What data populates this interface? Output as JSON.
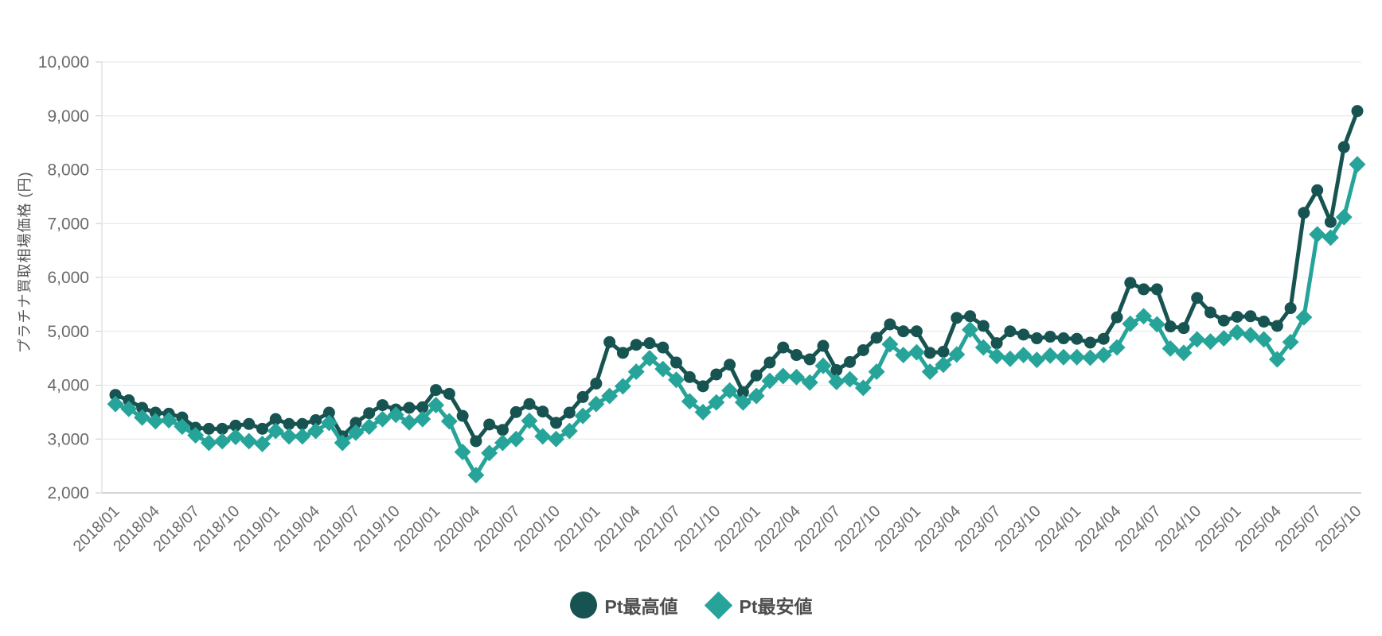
{
  "page": {
    "background": "#ffffff"
  },
  "chart_data": {
    "type": "line",
    "title": "",
    "xlabel": "",
    "ylabel": "プラチナ買取相場価格 (円)",
    "ylim": [
      2000,
      10000
    ],
    "y_tick_step": 1000,
    "y_tick_labels": [
      "2,000",
      "3,000",
      "4,000",
      "5,000",
      "6,000",
      "7,000",
      "8,000",
      "9,000",
      "10,000"
    ],
    "grid": true,
    "legend_position": "bottom",
    "x_tick_labels": [
      "2018/01",
      "2018/04",
      "2018/07",
      "2018/10",
      "2019/01",
      "2019/04",
      "2019/07",
      "2019/10",
      "2020/01",
      "2020/04",
      "2020/07",
      "2020/10",
      "2021/01",
      "2021/04",
      "2021/07",
      "2021/10",
      "2022/01",
      "2022/04",
      "2022/07",
      "2022/10",
      "2023/01",
      "2023/04",
      "2023/07",
      "2023/10",
      "2024/01",
      "2024/04",
      "2024/07",
      "2024/10",
      "2025/01",
      "2025/04",
      "2025/07",
      "2025/10"
    ],
    "x": [
      "2018/01",
      "2018/02",
      "2018/03",
      "2018/04",
      "2018/05",
      "2018/06",
      "2018/07",
      "2018/08",
      "2018/09",
      "2018/10",
      "2018/11",
      "2018/12",
      "2019/01",
      "2019/02",
      "2019/03",
      "2019/04",
      "2019/05",
      "2019/06",
      "2019/07",
      "2019/08",
      "2019/09",
      "2019/10",
      "2019/11",
      "2019/12",
      "2020/01",
      "2020/02",
      "2020/03",
      "2020/04",
      "2020/05",
      "2020/06",
      "2020/07",
      "2020/08",
      "2020/09",
      "2020/10",
      "2020/11",
      "2020/12",
      "2021/01",
      "2021/02",
      "2021/03",
      "2021/04",
      "2021/05",
      "2021/06",
      "2021/07",
      "2021/08",
      "2021/09",
      "2021/10",
      "2021/11",
      "2021/12",
      "2022/01",
      "2022/02",
      "2022/03",
      "2022/04",
      "2022/05",
      "2022/06",
      "2022/07",
      "2022/08",
      "2022/09",
      "2022/10",
      "2022/11",
      "2022/12",
      "2023/01",
      "2023/02",
      "2023/03",
      "2023/04",
      "2023/05",
      "2023/06",
      "2023/07",
      "2023/08",
      "2023/09",
      "2023/10",
      "2023/11",
      "2023/12",
      "2024/01",
      "2024/02",
      "2024/03",
      "2024/04",
      "2024/05",
      "2024/06",
      "2024/07",
      "2024/08",
      "2024/09",
      "2024/10",
      "2024/11",
      "2024/12",
      "2025/01",
      "2025/02",
      "2025/03",
      "2025/04",
      "2025/05",
      "2025/06",
      "2025/07",
      "2025/08",
      "2025/09",
      "2025/10"
    ],
    "series": [
      {
        "name": "Pt最高値",
        "marker": "circle",
        "color": "#175351",
        "values": [
          3820,
          3720,
          3580,
          3490,
          3470,
          3400,
          3210,
          3190,
          3190,
          3250,
          3280,
          3190,
          3370,
          3280,
          3280,
          3350,
          3490,
          3050,
          3300,
          3480,
          3630,
          3550,
          3580,
          3590,
          3910,
          3840,
          3430,
          2960,
          3270,
          3170,
          3500,
          3650,
          3510,
          3300,
          3490,
          3780,
          4030,
          4800,
          4600,
          4750,
          4780,
          4700,
          4420,
          4150,
          3980,
          4200,
          4380,
          3870,
          4180,
          4420,
          4700,
          4560,
          4480,
          4730,
          4280,
          4430,
          4650,
          4880,
          5130,
          5000,
          5000,
          4600,
          4620,
          5250,
          5280,
          5100,
          4780,
          5000,
          4940,
          4870,
          4900,
          4870,
          4860,
          4790,
          4860,
          5260,
          5900,
          5780,
          5780,
          5090,
          5060,
          5620,
          5350,
          5200,
          5270,
          5280,
          5180,
          5100,
          5430,
          7200,
          7620,
          7030,
          8420,
          9090
        ]
      },
      {
        "name": "Pt最安値",
        "marker": "diamond",
        "color": "#26a49a",
        "values": [
          3650,
          3560,
          3400,
          3330,
          3350,
          3230,
          3070,
          2930,
          2960,
          3040,
          2960,
          2910,
          3150,
          3050,
          3050,
          3150,
          3300,
          2930,
          3120,
          3230,
          3370,
          3450,
          3310,
          3370,
          3630,
          3330,
          2760,
          2330,
          2740,
          2930,
          3000,
          3340,
          3050,
          3000,
          3150,
          3430,
          3650,
          3800,
          3980,
          4250,
          4500,
          4300,
          4100,
          3700,
          3500,
          3680,
          3900,
          3680,
          3800,
          4080,
          4170,
          4150,
          4050,
          4360,
          4060,
          4110,
          3950,
          4250,
          4760,
          4560,
          4610,
          4250,
          4380,
          4570,
          5030,
          4700,
          4540,
          4490,
          4560,
          4470,
          4550,
          4520,
          4520,
          4510,
          4560,
          4700,
          5140,
          5280,
          5130,
          4680,
          4600,
          4850,
          4810,
          4870,
          4980,
          4930,
          4850,
          4480,
          4800,
          5260,
          6800,
          6740,
          7120,
          8100
        ]
      }
    ],
    "style": {
      "grid_color": "#e4e4e4",
      "axis_color": "#c9c9c9",
      "tick_label_color": "#6b6b6b",
      "line_width": 5
    }
  }
}
